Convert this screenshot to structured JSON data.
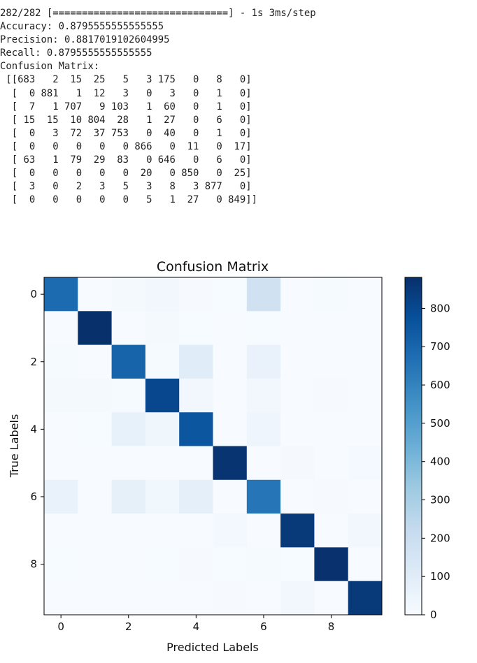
{
  "console": {
    "progress": "282/282 [==============================] - 1s 3ms/step",
    "accuracy": "Accuracy: 0.8795555555555555",
    "precision": "Precision: 0.8817019102604995",
    "recall": "Recall: 0.8795555555555555",
    "cm_header": "Confusion Matrix:",
    "cm_rows": [
      " [[683   2  15  25   5   3 175   0   8   0]",
      "  [  0 881   1  12   3   0   3   0   1   0]",
      "  [  7   1 707   9 103   1  60   0   1   0]",
      "  [ 15  15  10 804  28   1  27   0   6   0]",
      "  [  0   3  72  37 753   0  40   0   1   0]",
      "  [  0   0   0   0   0 866   0  11   0  17]",
      "  [ 63   1  79  29  83   0 646   0   6   0]",
      "  [  0   0   0   0   0  20   0 850   0  25]",
      "  [  3   0   2   3   5   3   8   3 877   0]",
      "  [  0   0   0   0   0   5   1  27   0 849]]"
    ]
  },
  "chart_data": {
    "type": "heatmap",
    "title": "Confusion Matrix",
    "xlabel": "Predicted Labels",
    "ylabel": "True Labels",
    "x_ticks": [
      0,
      2,
      4,
      6,
      8
    ],
    "y_ticks": [
      0,
      2,
      4,
      6,
      8
    ],
    "colorbar_ticks": [
      0,
      100,
      200,
      300,
      400,
      500,
      600,
      700,
      800
    ],
    "vmin": 0,
    "vmax": 881,
    "colormap": "Blues",
    "matrix": [
      [
        683,
        2,
        15,
        25,
        5,
        3,
        175,
        0,
        8,
        0
      ],
      [
        0,
        881,
        1,
        12,
        3,
        0,
        3,
        0,
        1,
        0
      ],
      [
        7,
        1,
        707,
        9,
        103,
        1,
        60,
        0,
        1,
        0
      ],
      [
        15,
        15,
        10,
        804,
        28,
        1,
        27,
        0,
        6,
        0
      ],
      [
        0,
        3,
        72,
        37,
        753,
        0,
        40,
        0,
        1,
        0
      ],
      [
        0,
        0,
        0,
        0,
        0,
        866,
        0,
        11,
        0,
        17
      ],
      [
        63,
        1,
        79,
        29,
        83,
        0,
        646,
        0,
        6,
        0
      ],
      [
        0,
        0,
        0,
        0,
        0,
        20,
        0,
        850,
        0,
        25
      ],
      [
        3,
        0,
        2,
        3,
        5,
        3,
        8,
        3,
        877,
        0
      ],
      [
        0,
        0,
        0,
        0,
        0,
        5,
        1,
        27,
        0,
        849
      ]
    ]
  }
}
